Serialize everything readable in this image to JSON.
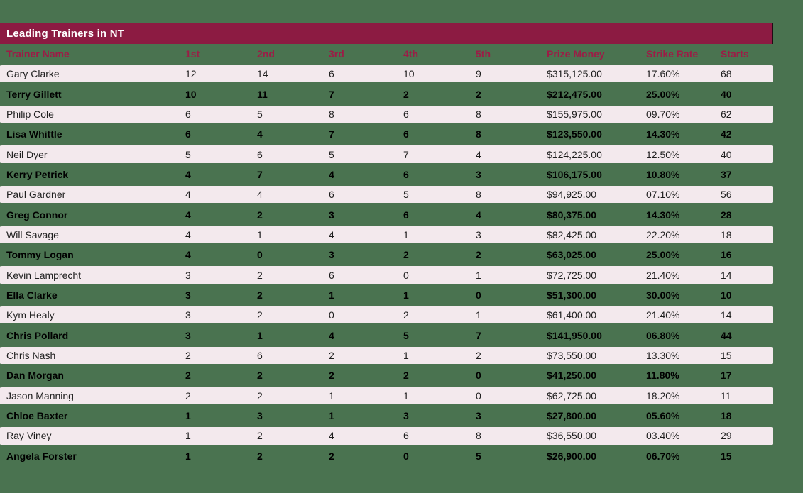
{
  "title": "Leading Trainers in NT",
  "chart_data": {
    "type": "table",
    "title": "Leading Trainers in NT",
    "columns": [
      "Trainer Name",
      "1st",
      "2nd",
      "3rd",
      "4th",
      "5th",
      "Prize Money",
      "Strike Rate",
      "Starts"
    ],
    "rows": [
      [
        "Gary Clarke",
        12,
        14,
        6,
        10,
        9,
        "$315,125.00",
        "17.60%",
        68
      ],
      [
        "Terry Gillett",
        10,
        11,
        7,
        2,
        2,
        "$212,475.00",
        "25.00%",
        40
      ],
      [
        "Philip Cole",
        6,
        5,
        8,
        6,
        8,
        "$155,975.00",
        "09.70%",
        62
      ],
      [
        "Lisa Whittle",
        6,
        4,
        7,
        6,
        8,
        "$123,550.00",
        "14.30%",
        42
      ],
      [
        "Neil Dyer",
        5,
        6,
        5,
        7,
        4,
        "$124,225.00",
        "12.50%",
        40
      ],
      [
        "Kerry Petrick",
        4,
        7,
        4,
        6,
        3,
        "$106,175.00",
        "10.80%",
        37
      ],
      [
        "Paul Gardner",
        4,
        4,
        6,
        5,
        8,
        "$94,925.00",
        "07.10%",
        56
      ],
      [
        "Greg Connor",
        4,
        2,
        3,
        6,
        4,
        "$80,375.00",
        "14.30%",
        28
      ],
      [
        "Will Savage",
        4,
        1,
        4,
        1,
        3,
        "$82,425.00",
        "22.20%",
        18
      ],
      [
        "Tommy Logan",
        4,
        0,
        3,
        2,
        2,
        "$63,025.00",
        "25.00%",
        16
      ],
      [
        "Kevin Lamprecht",
        3,
        2,
        6,
        0,
        1,
        "$72,725.00",
        "21.40%",
        14
      ],
      [
        "Ella Clarke",
        3,
        2,
        1,
        1,
        0,
        "$51,300.00",
        "30.00%",
        10
      ],
      [
        "Kym Healy",
        3,
        2,
        0,
        2,
        1,
        "$61,400.00",
        "21.40%",
        14
      ],
      [
        "Chris Pollard",
        3,
        1,
        4,
        5,
        7,
        "$141,950.00",
        "06.80%",
        44
      ],
      [
        "Chris Nash",
        2,
        6,
        2,
        1,
        2,
        "$73,550.00",
        "13.30%",
        15
      ],
      [
        "Dan Morgan",
        2,
        2,
        2,
        2,
        0,
        "$41,250.00",
        "11.80%",
        17
      ],
      [
        "Jason Manning",
        2,
        2,
        1,
        1,
        0,
        "$62,725.00",
        "18.20%",
        11
      ],
      [
        "Chloe Baxter",
        1,
        3,
        1,
        3,
        3,
        "$27,800.00",
        "05.60%",
        18
      ],
      [
        "Ray Viney",
        1,
        2,
        4,
        6,
        8,
        "$36,550.00",
        "03.40%",
        29
      ],
      [
        "Angela Forster",
        1,
        2,
        2,
        0,
        5,
        "$26,900.00",
        "06.70%",
        15
      ]
    ]
  },
  "colors": {
    "background": "#4a7350",
    "title_bar": "#8c1b42",
    "title_text": "#ffffff",
    "header_text": "#9c1c46",
    "row_light": "#f3e9ed",
    "row_text": "#1f1f1f",
    "row_dark_text": "#000000"
  }
}
